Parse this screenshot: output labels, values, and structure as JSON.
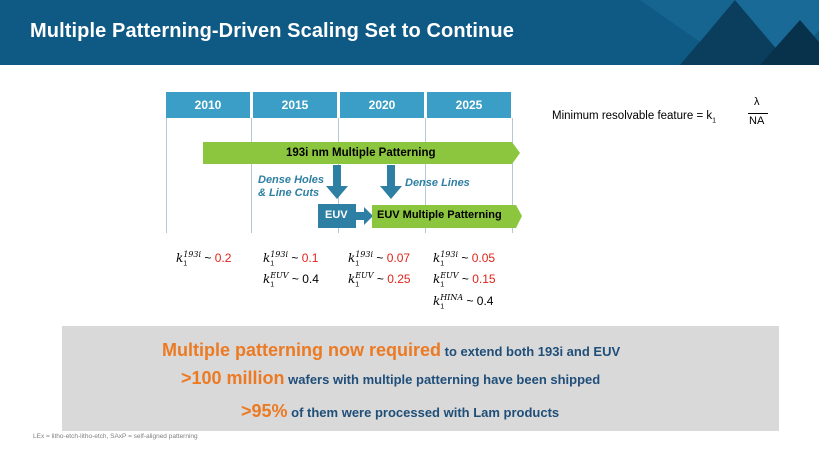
{
  "header": {
    "title": "Multiple Patterning-Driven Scaling Set to Continue"
  },
  "timeline": {
    "years": [
      "2010",
      "2015",
      "2020",
      "2025"
    ],
    "arrow_193i": "193i nm Multiple Patterning",
    "dense_holes": [
      "Dense Holes",
      "& Line Cuts"
    ],
    "dense_lines": "Dense Lines",
    "euv": "EUV",
    "euv_mp": "EUV Multiple Patterning"
  },
  "formula": {
    "text": "Minimum  resolvable feature = k",
    "sub": "1",
    "numerator": "λ",
    "denominator": "NA"
  },
  "k_values": {
    "c2010": {
      "r1_sup": "193i",
      "r1_val": "0.2"
    },
    "c2015": {
      "r1_sup": "193i",
      "r1_val": "0.1",
      "r2_sup": "EUV",
      "r2_val": "0.4"
    },
    "c2020": {
      "r1_sup": "193i",
      "r1_val": "0.07",
      "r2_sup": "EUV",
      "r2_val": "0.25"
    },
    "c2025": {
      "r1_sup": "193i",
      "r1_val": "0.05",
      "r2_sup": "EUV",
      "r2_val": "0.15",
      "r3_sup": "HINA",
      "r3_val": "0.4"
    }
  },
  "callout": {
    "line1_highlight": "Multiple patterning now required",
    "line1_rest": " to extend both 193i and EUV",
    "line2_highlight": ">100 million",
    "line2_rest": " wafers with multiple patterning have been shipped",
    "line3_highlight": ">95%",
    "line3_rest": " of them were processed with Lam products"
  },
  "footnote": "LEx = litho-etch-litho-etch,  SAxP = self-aligned patterning",
  "colors": {
    "header": "#0f5a85",
    "year_cell": "#3a9ec6",
    "green": "#8cc63f",
    "teal": "#2d7fa3",
    "orange": "#ec7a23",
    "red": "#e0241b"
  }
}
